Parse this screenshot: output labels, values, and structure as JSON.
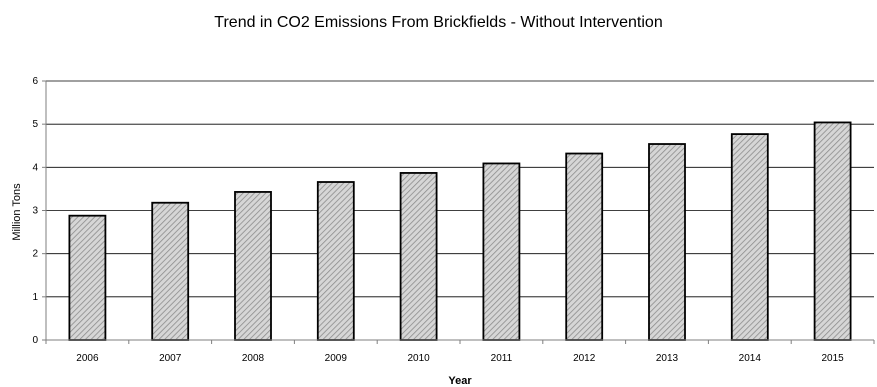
{
  "chart_data": {
    "type": "bar",
    "title": "Trend in CO2 Emissions From Brickfields - Without Intervention",
    "xlabel": "Year",
    "ylabel": "Million Tons",
    "categories": [
      "2006",
      "2007",
      "2008",
      "2009",
      "2010",
      "2011",
      "2012",
      "2013",
      "2014",
      "2015"
    ],
    "values": [
      2.88,
      3.18,
      3.43,
      3.66,
      3.87,
      4.09,
      4.32,
      4.54,
      4.77,
      5.04
    ],
    "ylim": [
      0,
      6
    ],
    "yticks": [
      0,
      1,
      2,
      3,
      4,
      5,
      6
    ],
    "grid": true,
    "legend": "none",
    "bar_fill": "hatched-gray",
    "colors": {
      "bar_edge": "#000000",
      "hatch": "#8c8c8c",
      "bar_bg": "#d6d6d6",
      "grid": "#000000",
      "axis": "#7f7f7f"
    }
  }
}
